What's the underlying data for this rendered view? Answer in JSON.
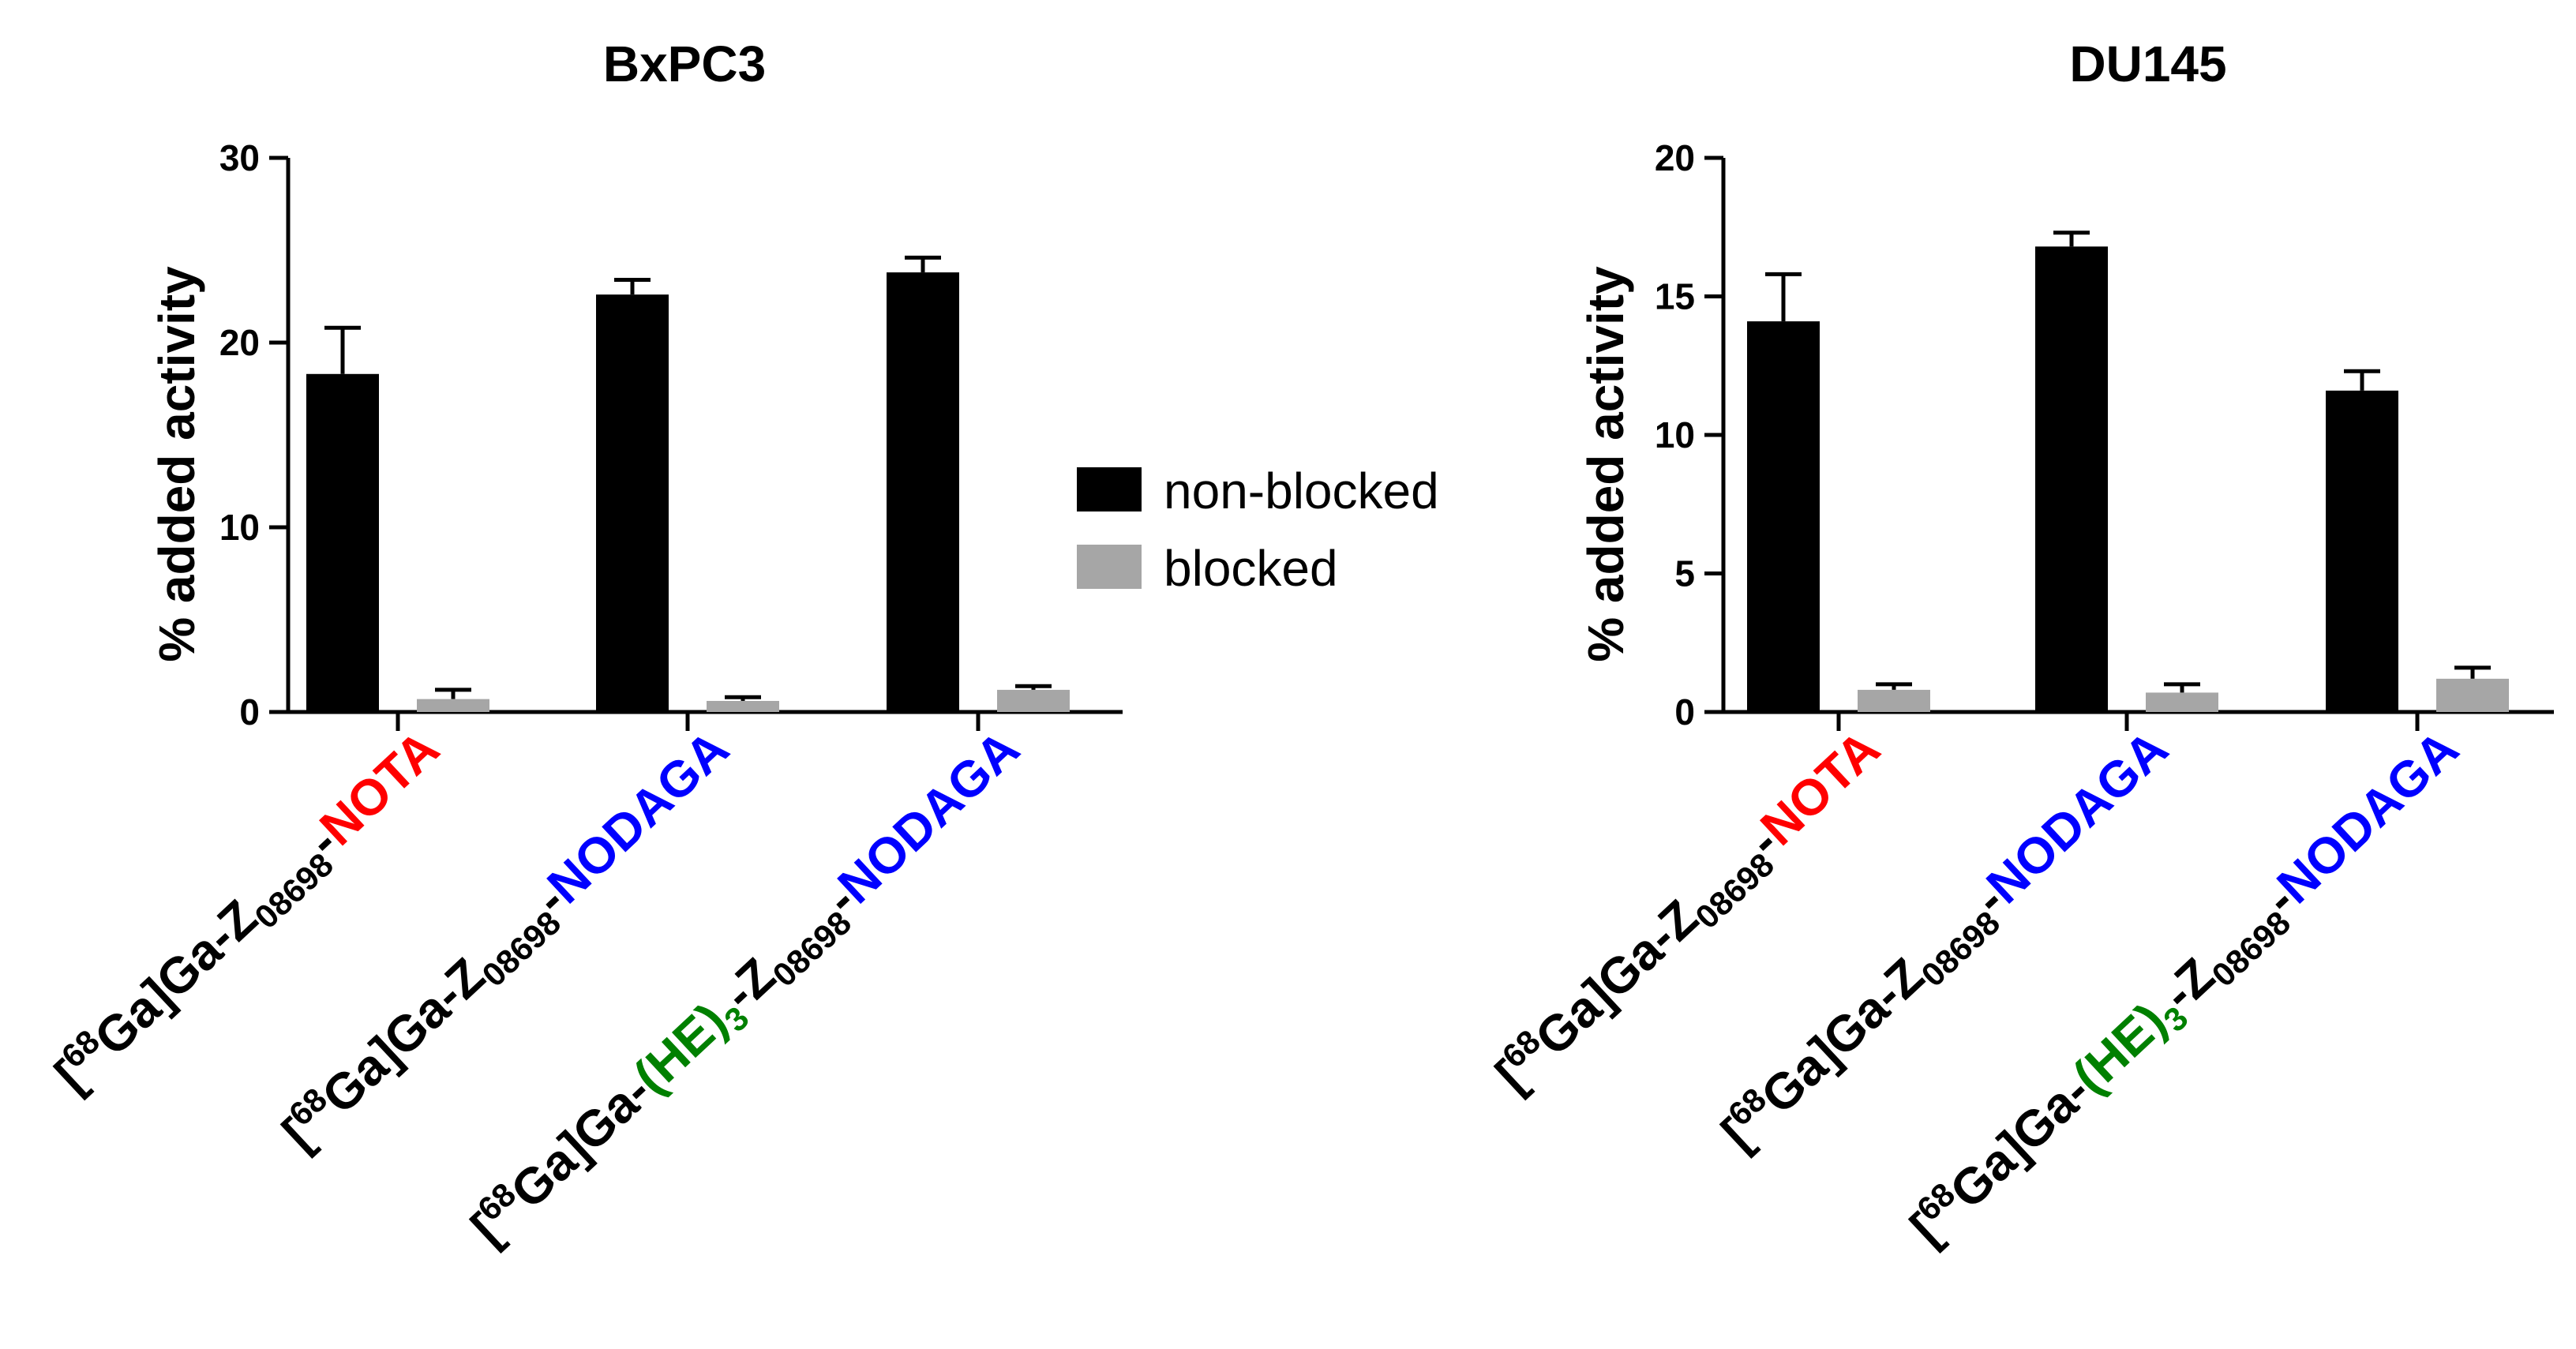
{
  "chart_data": [
    {
      "type": "bar",
      "title": "BxPC3",
      "xlabel": "",
      "ylabel": "% added activity",
      "ylim": [
        0,
        30
      ],
      "yticks": [
        0,
        10,
        20,
        30
      ],
      "categories": [
        {
          "parts": [
            {
              "t": "[",
              "c": "#000000"
            },
            {
              "t": "68",
              "c": "#000000",
              "s": "sup"
            },
            {
              "t": "Ga]Ga-Z",
              "c": "#000000"
            },
            {
              "t": "08698",
              "c": "#000000",
              "s": "sub"
            },
            {
              "t": "-",
              "c": "#000000"
            },
            {
              "t": "NOTA",
              "c": "#ff0000"
            }
          ]
        },
        {
          "parts": [
            {
              "t": "[",
              "c": "#000000"
            },
            {
              "t": "68",
              "c": "#000000",
              "s": "sup"
            },
            {
              "t": "Ga]Ga-Z",
              "c": "#000000"
            },
            {
              "t": "08698",
              "c": "#000000",
              "s": "sub"
            },
            {
              "t": "-",
              "c": "#000000"
            },
            {
              "t": "NODAGA",
              "c": "#0000ff"
            }
          ]
        },
        {
          "parts": [
            {
              "t": "[",
              "c": "#000000"
            },
            {
              "t": "68",
              "c": "#000000",
              "s": "sup"
            },
            {
              "t": "Ga]Ga-",
              "c": "#000000"
            },
            {
              "t": "(HE)",
              "c": "#008000"
            },
            {
              "t": "3",
              "c": "#008000",
              "s": "sub"
            },
            {
              "t": "-Z",
              "c": "#000000"
            },
            {
              "t": "08698",
              "c": "#000000",
              "s": "sub"
            },
            {
              "t": "-",
              "c": "#000000"
            },
            {
              "t": "NODAGA",
              "c": "#0000ff"
            }
          ]
        }
      ],
      "series": [
        {
          "name": "non-blocked",
          "color": "#000000",
          "values": [
            18.3,
            22.6,
            23.8
          ],
          "errors": [
            2.5,
            0.8,
            0.8
          ]
        },
        {
          "name": "blocked",
          "color": "#a6a6a6",
          "values": [
            0.7,
            0.6,
            1.2
          ],
          "errors": [
            0.5,
            0.2,
            0.2
          ]
        }
      ]
    },
    {
      "type": "bar",
      "title": "DU145",
      "xlabel": "",
      "ylabel": "% added activity",
      "ylim": [
        0,
        20
      ],
      "yticks": [
        0,
        5,
        10,
        15,
        20
      ],
      "categories": [
        {
          "parts": [
            {
              "t": "[",
              "c": "#000000"
            },
            {
              "t": "68",
              "c": "#000000",
              "s": "sup"
            },
            {
              "t": "Ga]Ga-Z",
              "c": "#000000"
            },
            {
              "t": "08698",
              "c": "#000000",
              "s": "sub"
            },
            {
              "t": "-",
              "c": "#000000"
            },
            {
              "t": "NOTA",
              "c": "#ff0000"
            }
          ]
        },
        {
          "parts": [
            {
              "t": "[",
              "c": "#000000"
            },
            {
              "t": "68",
              "c": "#000000",
              "s": "sup"
            },
            {
              "t": "Ga]Ga-Z",
              "c": "#000000"
            },
            {
              "t": "08698",
              "c": "#000000",
              "s": "sub"
            },
            {
              "t": "-",
              "c": "#000000"
            },
            {
              "t": "NODAGA",
              "c": "#0000ff"
            }
          ]
        },
        {
          "parts": [
            {
              "t": "[",
              "c": "#000000"
            },
            {
              "t": "68",
              "c": "#000000",
              "s": "sup"
            },
            {
              "t": "Ga]Ga-",
              "c": "#000000"
            },
            {
              "t": "(HE)",
              "c": "#008000"
            },
            {
              "t": "3",
              "c": "#008000",
              "s": "sub"
            },
            {
              "t": "-Z",
              "c": "#000000"
            },
            {
              "t": "08698",
              "c": "#000000",
              "s": "sub"
            },
            {
              "t": "-",
              "c": "#000000"
            },
            {
              "t": "NODAGA",
              "c": "#0000ff"
            }
          ]
        }
      ],
      "series": [
        {
          "name": "non-blocked",
          "color": "#000000",
          "values": [
            14.1,
            16.8,
            11.6
          ],
          "errors": [
            1.7,
            0.5,
            0.7
          ]
        },
        {
          "name": "blocked",
          "color": "#a6a6a6",
          "values": [
            0.8,
            0.7,
            1.2
          ],
          "errors": [
            0.2,
            0.3,
            0.4
          ]
        }
      ]
    }
  ],
  "legend": {
    "placement": "between-panels",
    "items": [
      {
        "label": "non-blocked",
        "color": "#000000"
      },
      {
        "label": "blocked",
        "color": "#a6a6a6"
      }
    ]
  }
}
